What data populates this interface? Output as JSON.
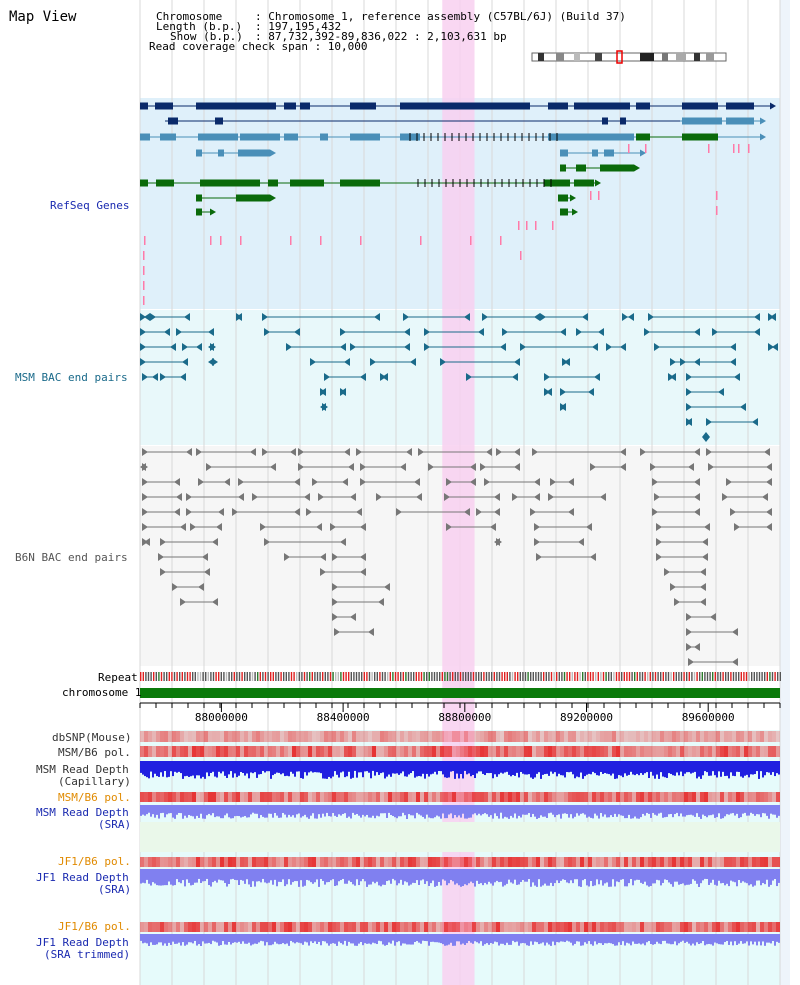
{
  "page": {
    "title": "Map View"
  },
  "header": {
    "chromosome_key": "Chromosome",
    "chromosome_value": ": Chromosome 1, reference assembly (C57BL/6J) (Build 37)",
    "length_key": "Length (b.p.)",
    "length_value": ": 197,195,432",
    "show_key": "Show (b.p.)",
    "show_value": ": 87,732,392-89,836,022 : 2,103,631 bp",
    "read_coverage": "Read coverage check span : 10,000"
  },
  "tracks": {
    "refseq": "RefSeq Genes",
    "msm_bac": "MSM BAC end pairs",
    "b6n_bac": "B6N BAC end pairs",
    "repeat": "Repeat",
    "chromosome": "chromosome 1",
    "dbsnp": "dbSNP(Mouse)",
    "msm_b6_pol_1": "MSM/B6 pol.",
    "msm_read_depth_cap": "MSM Read Depth",
    "msm_read_depth_cap_sub": "(Capillary)",
    "msm_b6_pol_2": "MSM/B6 pol.",
    "msm_read_depth_sra": "MSM Read Depth",
    "msm_read_depth_sra_sub": "(SRA)",
    "jf1_b6_pol_1": "JF1/B6 pol.",
    "jf1_read_depth_sra": "JF1 Read Depth",
    "jf1_read_depth_sra_sub": "(SRA)",
    "jf1_b6_pol_2": "JF1/B6 pol.",
    "jf1_read_depth_trim": "JF1 Read Depth",
    "jf1_read_depth_trim_sub": "(SRA trimmed)"
  },
  "axis": {
    "ticks": [
      {
        "label": "88000000",
        "bp": 88000000
      },
      {
        "label": "88400000",
        "bp": 88400000
      },
      {
        "label": "88800000",
        "bp": 88800000
      },
      {
        "label": "89200000",
        "bp": 89200000
      },
      {
        "label": "89600000",
        "bp": 89600000
      }
    ],
    "start_bp": 87732392,
    "end_bp": 89836022
  },
  "highlight": {
    "start_bp": 88726000,
    "end_bp": 88832000
  },
  "colors": {
    "refseq_dark": "#0a2a6a",
    "refseq_mid": "#4a8fb8",
    "refseq_green": "#0a6a0a",
    "refseq_bg": "#dff0fa",
    "msm_bac": "#1a6a8a",
    "msm_bg": "#e8f8fa",
    "b6n_bac": "#555555",
    "highlight": "#f8d0f0",
    "chromosome": "#0a7a0a",
    "depth_blue": "#2020e0",
    "depth_light": "#8080f0"
  }
}
